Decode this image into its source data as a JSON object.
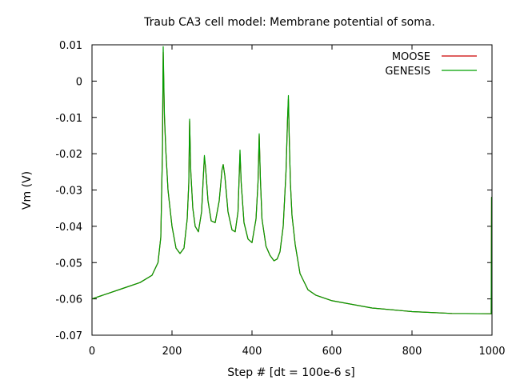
{
  "chart_data": {
    "type": "line",
    "title": "Traub CA3 cell model: Membrane potential of soma.",
    "xlabel": "Step # [dt = 100e-6 s]",
    "ylabel": "Vm (V)",
    "xlim": [
      0,
      1000
    ],
    "ylim": [
      -0.07,
      0.01
    ],
    "x_ticks": [
      "0",
      "200",
      "400",
      "600",
      "800",
      "1000"
    ],
    "y_ticks": [
      "0.01",
      "0",
      "-0.01",
      "-0.02",
      "-0.03",
      "-0.04",
      "-0.05",
      "-0.06",
      "-0.07"
    ],
    "grid": false,
    "legend": "top-right",
    "series": [
      {
        "name": "MOOSE",
        "color": "#cc0000",
        "x": [
          0,
          40,
          80,
          120,
          150,
          165,
          172,
          176,
          178,
          181,
          185,
          190,
          200,
          210,
          220,
          230,
          238,
          242,
          244,
          247,
          252,
          258,
          266,
          274,
          278,
          281,
          284,
          290,
          298,
          308,
          318,
          325,
          328,
          332,
          340,
          350,
          358,
          365,
          368,
          370,
          373,
          380,
          390,
          400,
          410,
          415,
          418,
          421,
          425,
          435,
          445,
          455,
          463,
          470,
          478,
          485,
          489,
          491,
          493,
          496,
          500,
          508,
          520,
          540,
          560,
          600,
          700,
          800,
          900,
          998,
          999,
          1000
        ],
        "y": [
          -0.06,
          -0.0585,
          -0.057,
          -0.0555,
          -0.0535,
          -0.05,
          -0.043,
          -0.02,
          0.008,
          -0.01,
          -0.02,
          -0.03,
          -0.04,
          -0.046,
          -0.0475,
          -0.046,
          -0.038,
          -0.028,
          -0.011,
          -0.025,
          -0.035,
          -0.04,
          -0.0415,
          -0.036,
          -0.027,
          -0.021,
          -0.024,
          -0.033,
          -0.0385,
          -0.039,
          -0.033,
          -0.0245,
          -0.023,
          -0.026,
          -0.036,
          -0.041,
          -0.0415,
          -0.036,
          -0.026,
          -0.02,
          -0.028,
          -0.039,
          -0.0435,
          -0.0445,
          -0.038,
          -0.028,
          -0.015,
          -0.027,
          -0.038,
          -0.0455,
          -0.048,
          -0.0495,
          -0.049,
          -0.047,
          -0.04,
          -0.025,
          -0.01,
          -0.005,
          -0.015,
          -0.028,
          -0.037,
          -0.045,
          -0.053,
          -0.0575,
          -0.059,
          -0.0605,
          -0.0625,
          -0.0635,
          -0.064,
          -0.0641,
          -0.032,
          -0.032
        ]
      },
      {
        "name": "GENESIS",
        "color": "#00a000",
        "x": [
          0,
          40,
          80,
          120,
          150,
          165,
          172,
          176,
          178,
          181,
          185,
          190,
          200,
          210,
          220,
          230,
          238,
          242,
          244,
          247,
          252,
          258,
          266,
          274,
          278,
          281,
          284,
          290,
          298,
          308,
          318,
          325,
          328,
          332,
          340,
          350,
          358,
          365,
          368,
          370,
          373,
          380,
          390,
          400,
          410,
          415,
          418,
          421,
          425,
          435,
          445,
          455,
          463,
          470,
          478,
          485,
          489,
          491,
          493,
          496,
          500,
          508,
          520,
          540,
          560,
          600,
          700,
          800,
          900,
          998,
          999,
          1000
        ],
        "y": [
          -0.06,
          -0.0585,
          -0.057,
          -0.0555,
          -0.0535,
          -0.05,
          -0.043,
          -0.02,
          0.0095,
          -0.009,
          -0.02,
          -0.03,
          -0.04,
          -0.046,
          -0.0475,
          -0.046,
          -0.038,
          -0.028,
          -0.0105,
          -0.025,
          -0.035,
          -0.04,
          -0.0415,
          -0.036,
          -0.027,
          -0.0205,
          -0.024,
          -0.033,
          -0.0385,
          -0.039,
          -0.033,
          -0.0245,
          -0.023,
          -0.026,
          -0.036,
          -0.041,
          -0.0415,
          -0.036,
          -0.026,
          -0.019,
          -0.028,
          -0.039,
          -0.0435,
          -0.0445,
          -0.038,
          -0.028,
          -0.0145,
          -0.027,
          -0.038,
          -0.0455,
          -0.048,
          -0.0495,
          -0.049,
          -0.047,
          -0.04,
          -0.025,
          -0.01,
          -0.004,
          -0.015,
          -0.028,
          -0.037,
          -0.045,
          -0.053,
          -0.0575,
          -0.059,
          -0.0605,
          -0.0625,
          -0.0635,
          -0.064,
          -0.0641,
          -0.032,
          -0.032
        ]
      }
    ]
  }
}
